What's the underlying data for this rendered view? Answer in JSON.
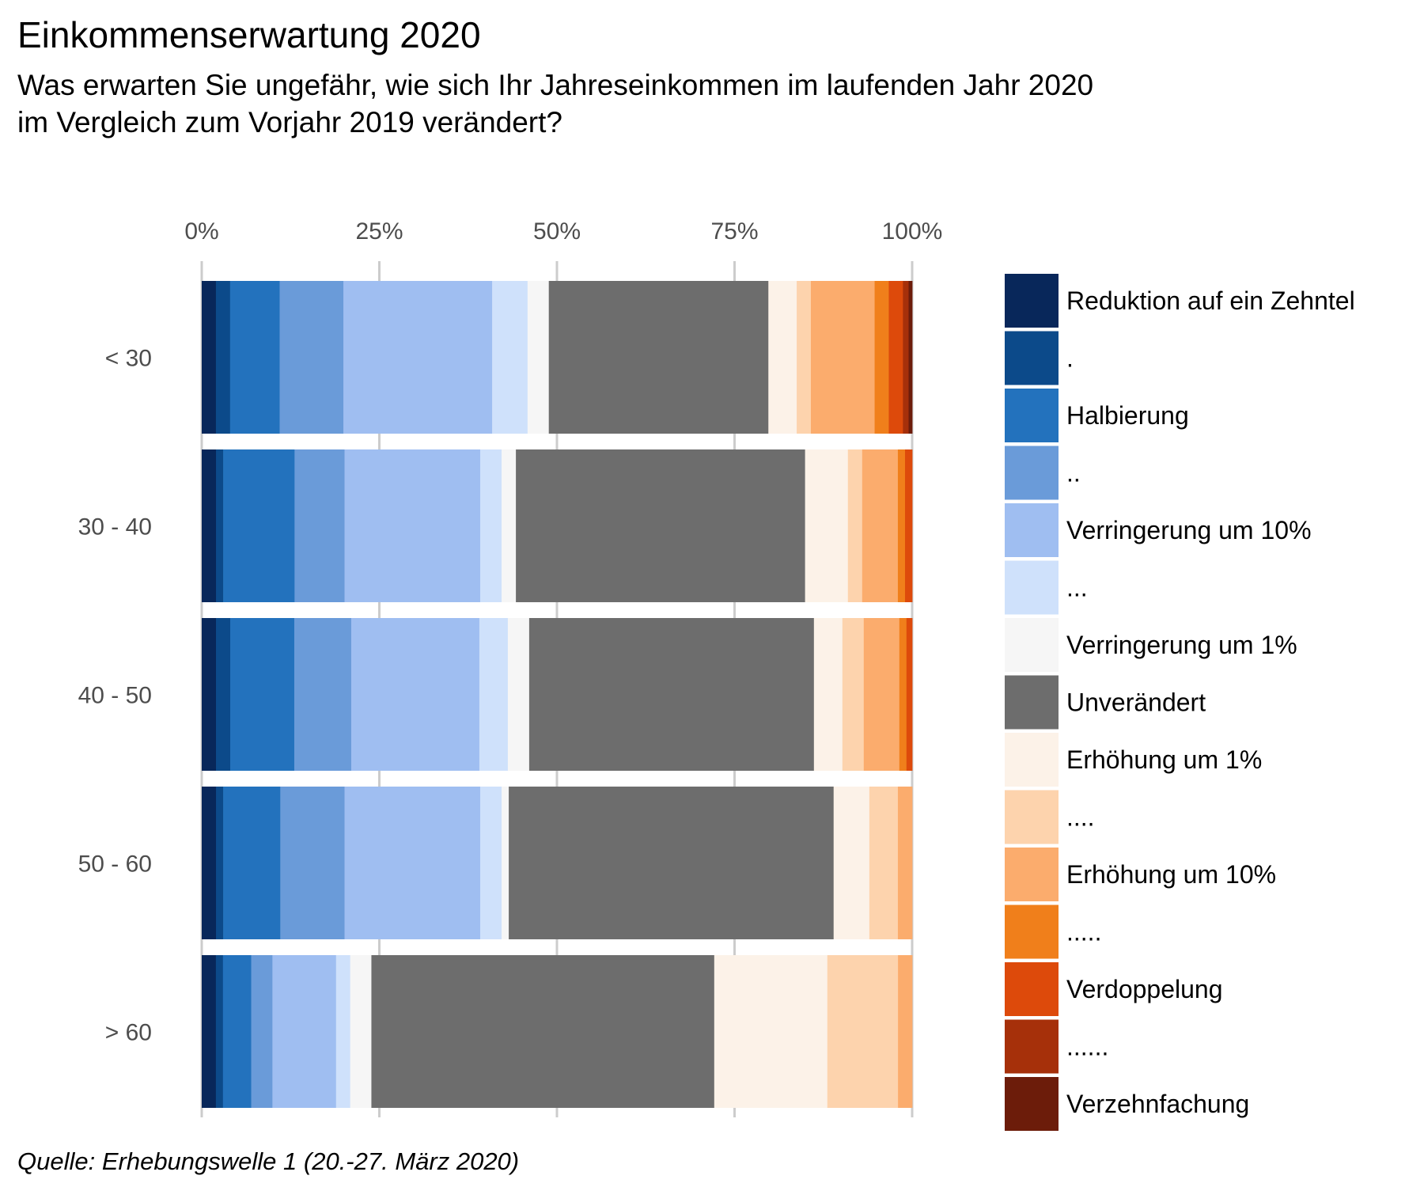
{
  "chart_data": {
    "type": "bar",
    "orientation": "horizontal",
    "stacked": true,
    "normalized_to_percent": true,
    "title": "Einkommenserwartung 2020",
    "subtitle_lines": [
      "Was erwarten Sie ungefähr, wie sich Ihr Jahreseinkommen im laufenden Jahr 2020",
      "im Vergleich zum Vorjahr 2019 verändert?"
    ],
    "caption": "Quelle: Erhebungswelle 1 (20.-27. März 2020)",
    "xlim": [
      0,
      100
    ],
    "x_ticks": [
      0,
      25,
      50,
      75,
      100
    ],
    "x_tick_labels": [
      "0%",
      "25%",
      "50%",
      "75%",
      "100%"
    ],
    "x_axis_position": "top",
    "grid": true,
    "legend_position": "right",
    "categories": [
      "< 30",
      "30 - 40",
      "40 - 50",
      "50 - 60",
      "> 60"
    ],
    "series": [
      {
        "name": "Reduktion auf ein Zehntel",
        "color": "#08275a",
        "values": [
          2.0,
          2.0,
          2.0,
          2.0,
          2.0
        ]
      },
      {
        "name": ".",
        "color": "#0c4a8a",
        "values": [
          2.0,
          1.0,
          2.0,
          1.0,
          1.0
        ]
      },
      {
        "name": "Halbierung",
        "color": "#2372bd",
        "values": [
          7.0,
          10.0,
          9.0,
          8.0,
          4.0
        ]
      },
      {
        "name": "..",
        "color": "#6a9bd9",
        "values": [
          9.0,
          7.0,
          8.0,
          9.0,
          3.0
        ]
      },
      {
        "name": "Verringerung um 10%",
        "color": "#9fbef1",
        "values": [
          21.0,
          19.0,
          18.0,
          19.0,
          9.0
        ]
      },
      {
        "name": "...",
        "color": "#cfe1fb",
        "values": [
          5.0,
          3.0,
          4.0,
          3.0,
          2.0
        ]
      },
      {
        "name": "Verringerung um 1%",
        "color": "#f6f6f6",
        "values": [
          3.0,
          2.0,
          3.0,
          1.0,
          3.0
        ]
      },
      {
        "name": "Unverändert",
        "color": "#6d6d6d",
        "values": [
          31.0,
          40.5,
          40.0,
          45.5,
          48.5
        ]
      },
      {
        "name": "Erhöhung um 1%",
        "color": "#fcf2e8",
        "values": [
          4.0,
          6.0,
          4.0,
          5.0,
          16.0
        ]
      },
      {
        "name": "....",
        "color": "#fdd3ad",
        "values": [
          2.0,
          2.0,
          3.0,
          4.0,
          10.0
        ]
      },
      {
        "name": "Erhöhung um 10%",
        "color": "#fbac6d",
        "values": [
          9.0,
          5.0,
          5.0,
          2.0,
          2.0
        ]
      },
      {
        "name": ".....",
        "color": "#f07f1b",
        "values": [
          2.0,
          1.0,
          1.0,
          0.0,
          0.0
        ]
      },
      {
        "name": "Verdoppelung",
        "color": "#dd4a0b",
        "values": [
          2.0,
          1.0,
          0.8,
          0.0,
          0.0
        ]
      },
      {
        "name": "......",
        "color": "#a6300a",
        "values": [
          0.8,
          0.0,
          0.0,
          0.0,
          0.0
        ]
      },
      {
        "name": "Verzehnfachung",
        "color": "#6c1c0a",
        "values": [
          0.5,
          0.0,
          0.0,
          0.0,
          0.0
        ]
      }
    ]
  }
}
